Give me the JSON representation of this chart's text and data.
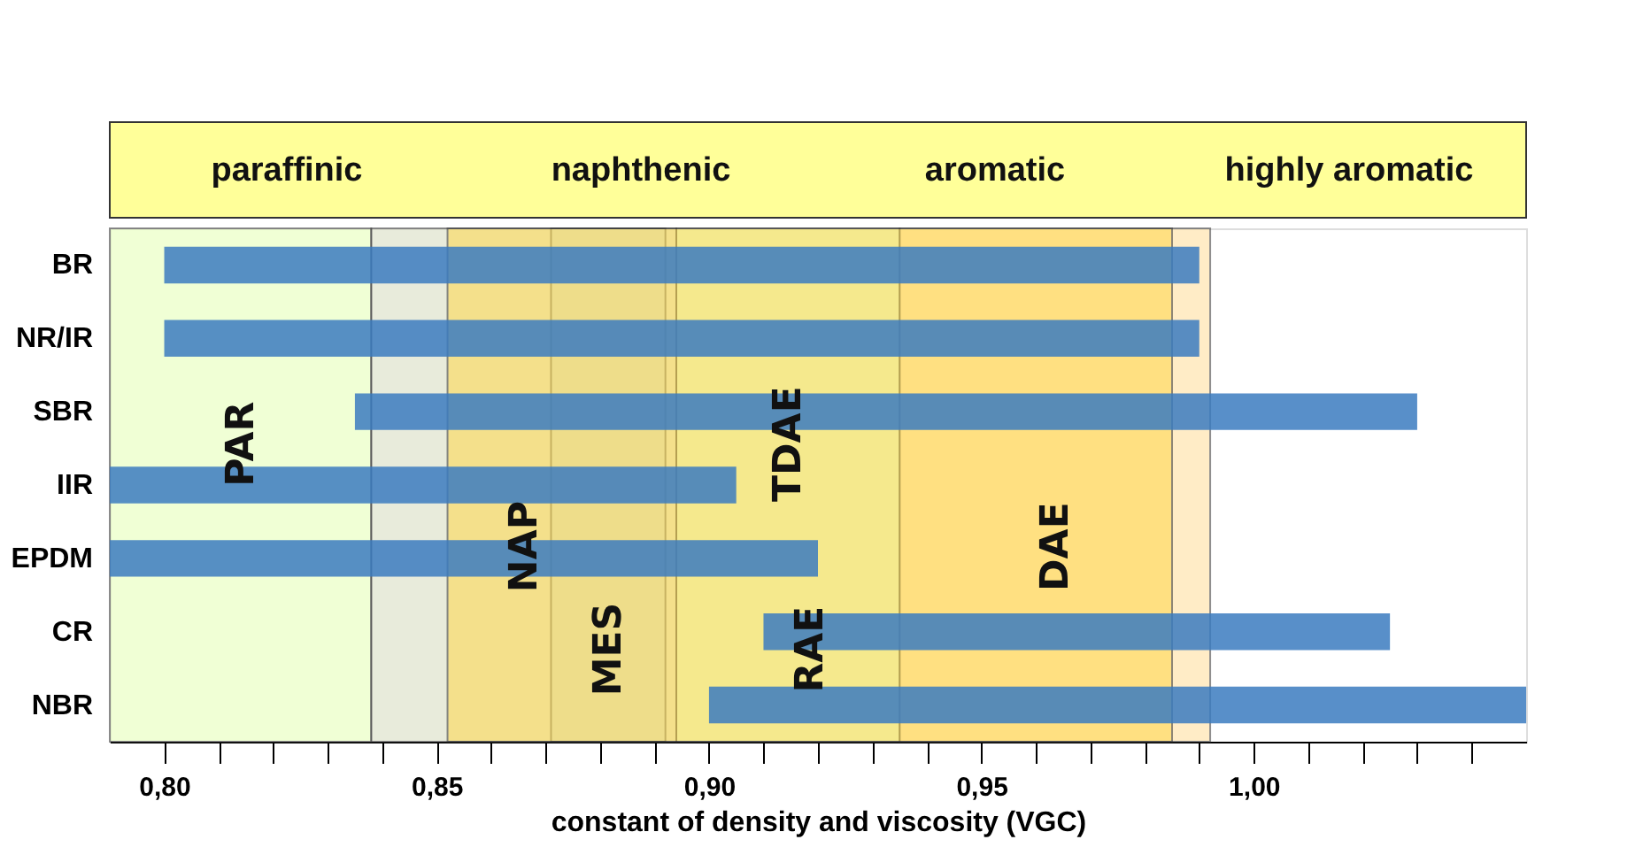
{
  "chart_data": {
    "type": "bar",
    "orientation": "horizontal",
    "xlabel": "constant of density and viscosity (VGC)",
    "categories": [
      "BR",
      "NR/IR",
      "SBR",
      "IIR",
      "EPDM",
      "CR",
      "NBR"
    ],
    "base": [
      0.8,
      0.8,
      0.835,
      0.79,
      0.79,
      0.91,
      0.9
    ],
    "values": [
      0.19,
      0.19,
      0.195,
      0.115,
      0.13,
      0.115,
      0.15
    ],
    "color": "#3b7bbf",
    "xlim": [
      0.79,
      1.05
    ],
    "xticks": [
      {
        "value": 0.8,
        "label": "0,80"
      },
      {
        "value": 0.81,
        "label": null
      },
      {
        "value": 0.82,
        "label": null
      },
      {
        "value": 0.83,
        "label": null
      },
      {
        "value": 0.84,
        "label": null
      },
      {
        "value": 0.85,
        "label": "0,85"
      },
      {
        "value": 0.86,
        "label": null
      },
      {
        "value": 0.87,
        "label": null
      },
      {
        "value": 0.88,
        "label": null
      },
      {
        "value": 0.89,
        "label": null
      },
      {
        "value": 0.9,
        "label": "0,90"
      },
      {
        "value": 0.91,
        "label": null
      },
      {
        "value": 0.92,
        "label": null
      },
      {
        "value": 0.93,
        "label": null
      },
      {
        "value": 0.94,
        "label": null
      },
      {
        "value": 0.95,
        "label": "0,95"
      },
      {
        "value": 0.96,
        "label": null
      },
      {
        "value": 0.97,
        "label": null
      },
      {
        "value": 0.98,
        "label": null
      },
      {
        "value": 0.99,
        "label": null
      },
      {
        "value": 1.0,
        "label": "1,00"
      },
      {
        "value": 1.01,
        "label": null
      },
      {
        "value": 1.02,
        "label": null
      },
      {
        "value": 1.03,
        "label": null
      },
      {
        "value": 1.04,
        "label": null
      }
    ],
    "bands": [
      {
        "axis": "x",
        "from": 0.79,
        "to": 0.838,
        "label": "PAR",
        "color": "#e4ffb4"
      },
      {
        "axis": "x",
        "from": 0.838,
        "to": 0.894,
        "label": "NAP",
        "color": "#d6dcbf"
      },
      {
        "axis": "x",
        "from": 0.871,
        "to": 0.892,
        "label": "MES",
        "color": "#cfe0d8"
      },
      {
        "axis": "x",
        "from": 0.894,
        "to": 0.935,
        "label": "TDAE",
        "color": "#d8ffc8"
      },
      {
        "axis": "x",
        "from": 0.935,
        "to": 0.992,
        "label": "DAE",
        "color": "#ffdd99"
      },
      {
        "axis": "x",
        "from": 0.852,
        "to": 0.985,
        "label": "RAE",
        "color": "#ffd84a"
      }
    ],
    "annotations": [
      "paraffinic",
      "naphthenic",
      "aromatic",
      "highly aromatic"
    ],
    "grid": false
  }
}
